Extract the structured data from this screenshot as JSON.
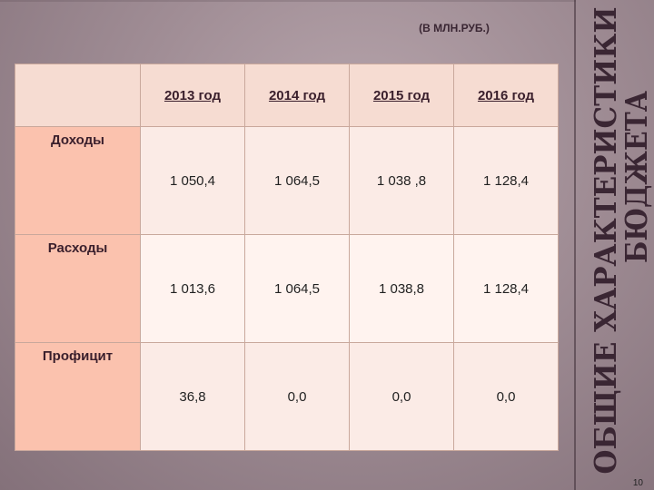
{
  "unit_note": "(В МЛН.РУБ.)",
  "title": {
    "line1": "ОБЩИЕ  ХАРАКТЕРИСТИКИ",
    "line2": "БЮДЖЕТА"
  },
  "table": {
    "headers": [
      "2013 год",
      "2014 год",
      "2015 год",
      "2016 год"
    ],
    "rows": [
      {
        "label": "Доходы",
        "values": [
          "1 050,4",
          "1 064,5",
          "1 038 ,8",
          "1 128,4"
        ]
      },
      {
        "label": "Расходы",
        "values": [
          "1 013,6",
          "1 064,5",
          "1 038,8",
          "1 128,4"
        ]
      },
      {
        "label": "Профицит",
        "values": [
          "36,8",
          "0,0",
          "0,0",
          "0,0"
        ]
      }
    ]
  },
  "page_number": "10",
  "colors": {
    "background": "#a08d95",
    "header_fill": "#f6dcd2",
    "row_label_fill": "#fbc2ae",
    "cell_fill": "#fbebe6",
    "title_text": "#3a2633"
  }
}
